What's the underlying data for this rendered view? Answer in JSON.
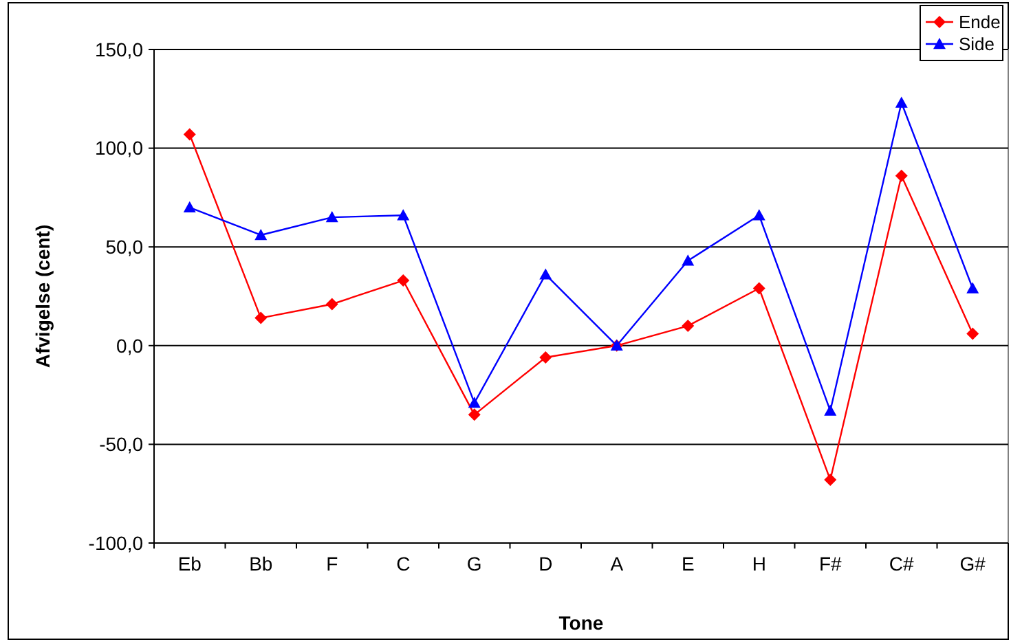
{
  "chart_data": {
    "type": "line",
    "xlabel": "Tone",
    "ylabel": "Afvigelse (cent)",
    "categories": [
      "Eb",
      "Bb",
      "F",
      "C",
      "G",
      "D",
      "A",
      "E",
      "H",
      "F#",
      "C#",
      "G#"
    ],
    "series": [
      {
        "name": "Ende",
        "color": "#ff0000",
        "marker": "diamond",
        "values": [
          107,
          14,
          21,
          33,
          -35,
          -6,
          0,
          10,
          29,
          -68,
          86,
          6
        ]
      },
      {
        "name": "Side",
        "color": "#0000ff",
        "marker": "triangle",
        "values": [
          70,
          56,
          65,
          66,
          -29,
          36,
          0,
          43,
          66,
          -33,
          123,
          29
        ]
      }
    ],
    "ylim": [
      -100,
      150
    ],
    "yticks": [
      {
        "value": -100,
        "label": "-100,0"
      },
      {
        "value": -50,
        "label": "-50,0"
      },
      {
        "value": 0,
        "label": "0,0"
      },
      {
        "value": 50,
        "label": "50,0"
      },
      {
        "value": 100,
        "label": "100,0"
      },
      {
        "value": 150,
        "label": "150,0"
      }
    ],
    "grid": "y",
    "legend": "top right"
  }
}
